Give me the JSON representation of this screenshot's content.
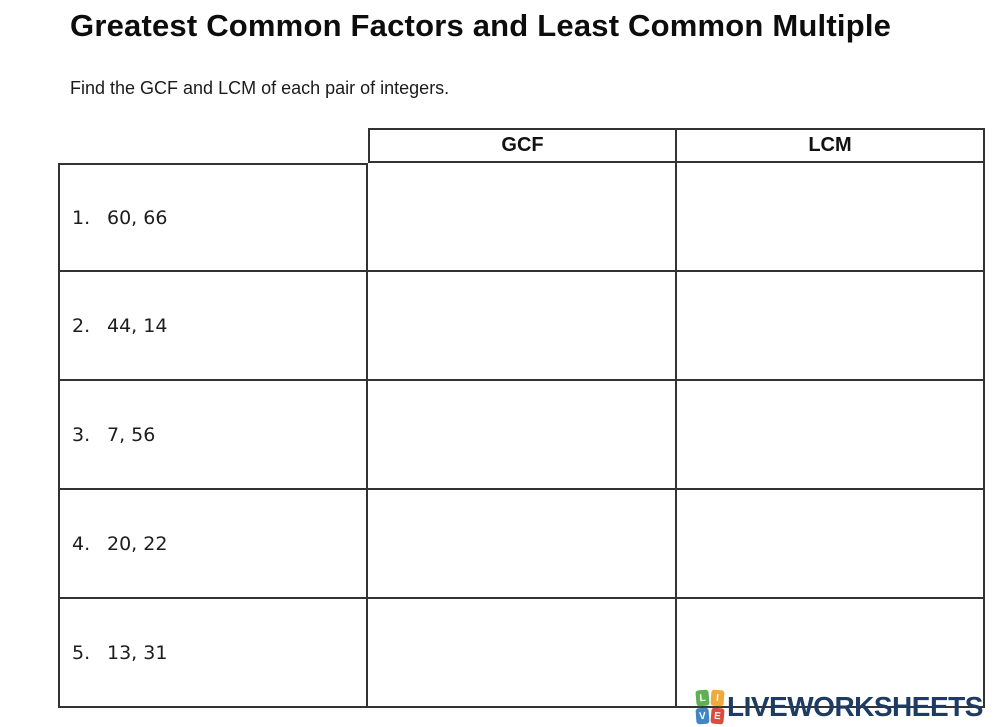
{
  "page": {
    "title": "Greatest Common Factors and Least Common Multiple",
    "instruction": "Find the GCF and LCM of each pair of integers."
  },
  "table": {
    "headers": {
      "gcf": "GCF",
      "lcm": "LCM"
    },
    "rows": [
      {
        "num": "1.",
        "pair": "60, 66",
        "gcf": "",
        "lcm": ""
      },
      {
        "num": "2.",
        "pair": "44, 14",
        "gcf": "",
        "lcm": ""
      },
      {
        "num": "3.",
        "pair": "7, 56",
        "gcf": "",
        "lcm": ""
      },
      {
        "num": "4.",
        "pair": "20, 22",
        "gcf": "",
        "lcm": ""
      },
      {
        "num": "5.",
        "pair": "13, 31",
        "gcf": "",
        "lcm": ""
      }
    ]
  },
  "logo": {
    "text": "LIVEWORKSHEETS",
    "text_color": "#1d3b63",
    "tiles": [
      {
        "letter": "L",
        "color": "#5db054"
      },
      {
        "letter": "I",
        "color": "#f2a93b"
      },
      {
        "letter": "V",
        "color": "#3e86c6"
      },
      {
        "letter": "E",
        "color": "#dd4b3e"
      }
    ]
  }
}
